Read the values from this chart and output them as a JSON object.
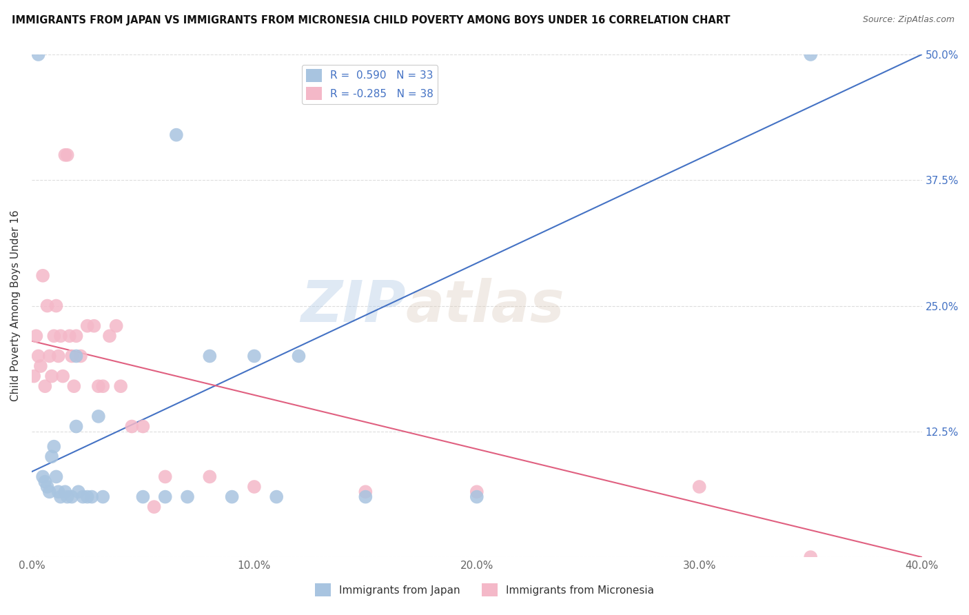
{
  "title": "IMMIGRANTS FROM JAPAN VS IMMIGRANTS FROM MICRONESIA CHILD POVERTY AMONG BOYS UNDER 16 CORRELATION CHART",
  "source": "Source: ZipAtlas.com",
  "ylabel": "Child Poverty Among Boys Under 16",
  "xlabel_japan": "Immigrants from Japan",
  "xlabel_micronesia": "Immigrants from Micronesia",
  "xlim": [
    0.0,
    0.4
  ],
  "ylim": [
    0.0,
    0.5
  ],
  "xticks": [
    0.0,
    0.1,
    0.2,
    0.3,
    0.4
  ],
  "xtick_labels": [
    "0.0%",
    "10.0%",
    "20.0%",
    "30.0%",
    "40.0%"
  ],
  "yticks": [
    0.0,
    0.125,
    0.25,
    0.375,
    0.5
  ],
  "ytick_labels": [
    "",
    "12.5%",
    "25.0%",
    "37.5%",
    "50.0%"
  ],
  "R_japan": 0.59,
  "N_japan": 33,
  "R_micronesia": -0.285,
  "N_micronesia": 38,
  "color_japan": "#a8c4e0",
  "color_micronesia": "#f4b8c8",
  "line_color_japan": "#4472c4",
  "line_color_micronesia": "#e06080",
  "watermark_zip": "ZIP",
  "watermark_atlas": "atlas",
  "japan_x": [
    0.003,
    0.005,
    0.006,
    0.007,
    0.008,
    0.009,
    0.01,
    0.011,
    0.012,
    0.013,
    0.015,
    0.016,
    0.018,
    0.02,
    0.021,
    0.023,
    0.025,
    0.027,
    0.03,
    0.032,
    0.05,
    0.06,
    0.065,
    0.07,
    0.08,
    0.09,
    0.1,
    0.11,
    0.12,
    0.15,
    0.2,
    0.35,
    0.02
  ],
  "japan_y": [
    0.5,
    0.08,
    0.075,
    0.07,
    0.065,
    0.1,
    0.11,
    0.08,
    0.065,
    0.06,
    0.065,
    0.06,
    0.06,
    0.2,
    0.065,
    0.06,
    0.06,
    0.06,
    0.14,
    0.06,
    0.06,
    0.06,
    0.42,
    0.06,
    0.2,
    0.06,
    0.2,
    0.06,
    0.2,
    0.06,
    0.06,
    0.5,
    0.13
  ],
  "micronesia_x": [
    0.001,
    0.002,
    0.003,
    0.004,
    0.005,
    0.006,
    0.007,
    0.008,
    0.009,
    0.01,
    0.011,
    0.012,
    0.013,
    0.014,
    0.015,
    0.016,
    0.017,
    0.018,
    0.019,
    0.02,
    0.022,
    0.025,
    0.028,
    0.03,
    0.032,
    0.035,
    0.038,
    0.04,
    0.045,
    0.05,
    0.055,
    0.06,
    0.08,
    0.1,
    0.15,
    0.2,
    0.3,
    0.35
  ],
  "micronesia_y": [
    0.18,
    0.22,
    0.2,
    0.19,
    0.28,
    0.17,
    0.25,
    0.2,
    0.18,
    0.22,
    0.25,
    0.2,
    0.22,
    0.18,
    0.4,
    0.4,
    0.22,
    0.2,
    0.17,
    0.22,
    0.2,
    0.23,
    0.23,
    0.17,
    0.17,
    0.22,
    0.23,
    0.17,
    0.13,
    0.13,
    0.05,
    0.08,
    0.08,
    0.07,
    0.065,
    0.065,
    0.07,
    0.0
  ],
  "japan_line_x": [
    0.0,
    0.4
  ],
  "japan_line_y": [
    0.085,
    0.5
  ],
  "micronesia_line_x": [
    0.0,
    0.4
  ],
  "micronesia_line_y": [
    0.215,
    0.0
  ]
}
